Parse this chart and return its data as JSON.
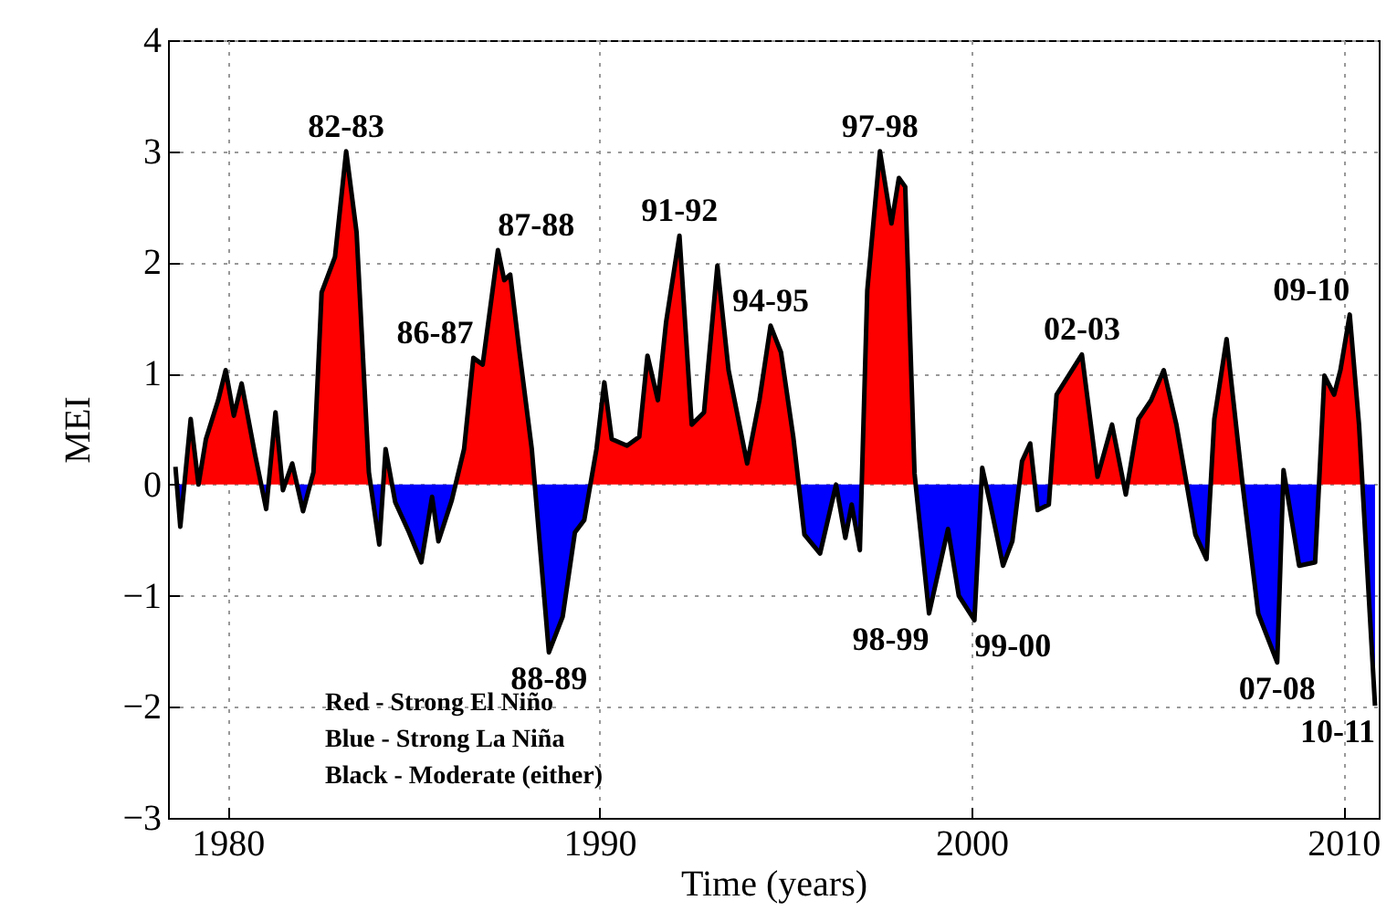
{
  "chart_data": {
    "type": "area",
    "xlabel": "Time (years)",
    "ylabel": "MEI",
    "x": [
      1978.6,
      1978.73,
      1979.01,
      1979.22,
      1979.42,
      1979.75,
      1979.95,
      1980.17,
      1980.38,
      1980.74,
      1981.04,
      1981.29,
      1981.49,
      1981.74,
      1982.03,
      1982.31,
      1982.53,
      1982.89,
      1983.19,
      1983.47,
      1983.8,
      1984.08,
      1984.25,
      1984.51,
      1984.88,
      1985.21,
      1985.5,
      1985.67,
      1986.03,
      1986.36,
      1986.61,
      1986.86,
      1987.27,
      1987.44,
      1987.6,
      1987.85,
      1988.18,
      1988.64,
      1989.01,
      1989.34,
      1989.59,
      1989.92,
      1990.13,
      1990.33,
      1990.74,
      1991.07,
      1991.29,
      1991.57,
      1991.79,
      1992.15,
      1992.48,
      1992.81,
      1993.17,
      1993.47,
      1993.97,
      1994.3,
      1994.6,
      1994.88,
      1995.21,
      1995.51,
      1995.93,
      1996.36,
      1996.61,
      1996.78,
      1997.0,
      1997.2,
      1997.54,
      1997.85,
      1998.05,
      1998.22,
      1998.47,
      1998.86,
      1999.37,
      1999.66,
      2000.08,
      2000.29,
      2000.51,
      2000.85,
      2001.1,
      2001.36,
      2001.58,
      2001.78,
      2002.08,
      2002.29,
      2002.97,
      2003.39,
      2003.78,
      2004.15,
      2004.49,
      2004.83,
      2005.17,
      2005.51,
      2006.02,
      2006.32,
      2006.53,
      2006.86,
      2007.29,
      2007.71,
      2008.22,
      2008.39,
      2008.81,
      2009.24,
      2009.49,
      2009.75,
      2009.92,
      2010.17,
      2010.42,
      2010.85
    ],
    "values": [
      0.16,
      -0.38,
      0.59,
      0,
      0.41,
      0.76,
      1.03,
      0.62,
      0.91,
      0.27,
      -0.22,
      0.65,
      -0.05,
      0.19,
      -0.24,
      0.11,
      1.73,
      2.05,
      3.0,
      2.27,
      0.11,
      -0.54,
      0.32,
      -0.16,
      -0.43,
      -0.7,
      -0.11,
      -0.51,
      -0.14,
      0.32,
      1.14,
      1.08,
      2.11,
      1.84,
      1.89,
      1.19,
      0.32,
      -1.51,
      -1.19,
      -0.43,
      -0.32,
      0.32,
      0.92,
      0.41,
      0.35,
      0.43,
      1.16,
      0.76,
      1.46,
      2.24,
      0.54,
      0.65,
      1.97,
      1.03,
      0.19,
      0.76,
      1.43,
      1.19,
      0.43,
      -0.45,
      -0.62,
      0,
      -0.48,
      -0.18,
      -0.59,
      1.75,
      3.0,
      2.35,
      2.76,
      2.68,
      0.1,
      -1.16,
      -0.4,
      -1.0,
      -1.22,
      0.15,
      -0.18,
      -0.73,
      -0.51,
      0.21,
      0.37,
      -0.23,
      -0.18,
      0.81,
      1.17,
      0.07,
      0.54,
      -0.09,
      0.59,
      0.76,
      1.03,
      0.54,
      -0.45,
      -0.67,
      0.59,
      1.31,
      0,
      -1.16,
      -1.6,
      0.13,
      -0.73,
      -0.7,
      0.98,
      0.81,
      1.03,
      1.53,
      0.54,
      -1.99
    ],
    "color": "#000000",
    "colors": [
      "#ff0000",
      "#0000ff",
      "#ff0000",
      "#ff0000",
      "#ff0000",
      "#ff0000",
      "#ff0000",
      "#ff0000",
      "#ff0000",
      "#ff0000",
      "#0000ff",
      "#ff0000",
      "#0000ff",
      "#ff0000",
      "#0000ff",
      "#ff0000",
      "#ff0000",
      "#ff0000",
      "#ff0000",
      "#ff0000",
      "#ff0000",
      "#0000ff",
      "#ff0000",
      "#0000ff",
      "#0000ff",
      "#0000ff",
      "#0000ff",
      "#0000ff",
      "#0000ff",
      "#ff0000",
      "#ff0000",
      "#ff0000",
      "#ff0000",
      "#ff0000",
      "#ff0000",
      "#ff0000",
      "#ff0000",
      "#0000ff",
      "#0000ff",
      "#0000ff",
      "#0000ff",
      "#ff0000",
      "#ff0000",
      "#ff0000",
      "#ff0000",
      "#ff0000",
      "#ff0000",
      "#ff0000",
      "#ff0000",
      "#ff0000",
      "#ff0000",
      "#ff0000",
      "#ff0000",
      "#ff0000",
      "#ff0000",
      "#ff0000",
      "#ff0000",
      "#ff0000",
      "#ff0000",
      "#0000ff",
      "#0000ff",
      "#ff0000",
      "#0000ff",
      "#0000ff",
      "#0000ff",
      "#ff0000",
      "#ff0000",
      "#ff0000",
      "#ff0000",
      "#ff0000",
      "#ff0000",
      "#0000ff",
      "#0000ff",
      "#0000ff",
      "#0000ff",
      "#ff0000",
      "#0000ff",
      "#0000ff",
      "#0000ff",
      "#ff0000",
      "#ff0000",
      "#0000ff",
      "#0000ff",
      "#ff0000",
      "#ff0000",
      "#ff0000",
      "#ff0000",
      "#0000ff",
      "#ff0000",
      "#ff0000",
      "#ff0000",
      "#ff0000",
      "#0000ff",
      "#0000ff",
      "#ff0000",
      "#ff0000",
      "#ff0000",
      "#0000ff",
      "#0000ff",
      "#ff0000",
      "#0000ff",
      "#0000ff",
      "#ff0000",
      "#ff0000",
      "#ff0000",
      "#ff0000",
      "#ff0000",
      "#0000ff"
    ],
    "xlim": [
      1978.4,
      2010.95
    ],
    "xticks": [
      1980,
      1990,
      2000,
      2010
    ],
    "ylim": [
      -3,
      4
    ],
    "yticks": [
      -3,
      -2,
      -1,
      0,
      1,
      2,
      3,
      4
    ],
    "grid": true,
    "annotations": [
      {
        "text": "82-83",
        "x": 1983.19,
        "y": 3.0
      },
      {
        "text": "86-87",
        "x": 1986.61,
        "y": 1.14
      },
      {
        "text": "87-88",
        "x": 1987.27,
        "y": 2.11
      },
      {
        "text": "88-89",
        "x": 1988.64,
        "y": -1.51
      },
      {
        "text": "91-92",
        "x": 1992.15,
        "y": 2.24
      },
      {
        "text": "94-95",
        "x": 1994.6,
        "y": 1.43
      },
      {
        "text": "97-98",
        "x": 1997.54,
        "y": 3.0
      },
      {
        "text": "98-99",
        "x": 1998.86,
        "y": -1.16
      },
      {
        "text": "99-00",
        "x": 2000.08,
        "y": -1.22
      },
      {
        "text": "02-03",
        "x": 2002.97,
        "y": 1.17
      },
      {
        "text": "07-08",
        "x": 2008.22,
        "y": -1.6
      },
      {
        "text": "09-10",
        "x": 2010.17,
        "y": 1.53
      },
      {
        "text": "10-11",
        "x": 2010.85,
        "y": -1.99
      },
      "Red - Strong El Niño",
      "Blue - Strong La Niña",
      "Black - Moderate (either)"
    ]
  }
}
